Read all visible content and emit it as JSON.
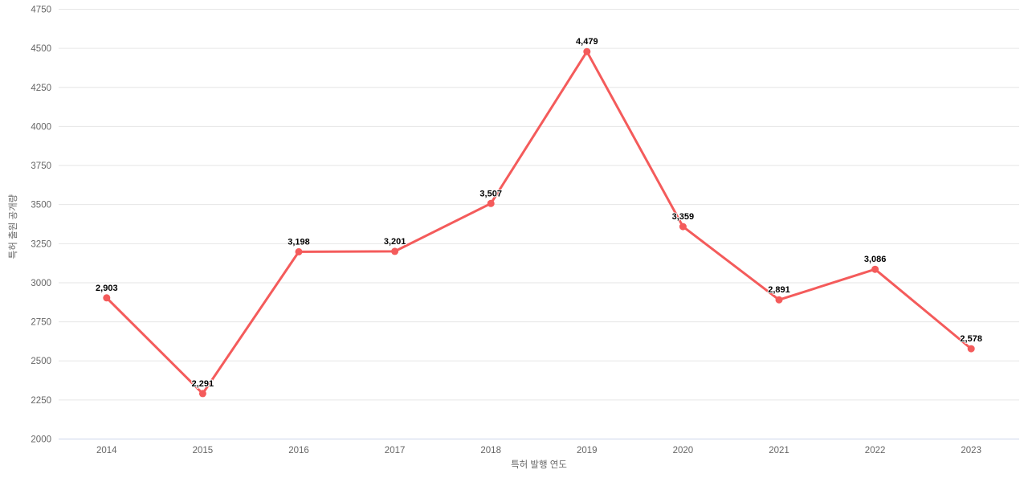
{
  "page": {
    "background": "#ffffff"
  },
  "chart_data": {
    "type": "line",
    "title": "",
    "categories": [
      "2014",
      "2015",
      "2016",
      "2017",
      "2018",
      "2019",
      "2020",
      "2021",
      "2022",
      "2023"
    ],
    "values": [
      2903,
      2291,
      3198,
      3201,
      3507,
      4479,
      3359,
      2891,
      3086,
      2578
    ],
    "point_labels": [
      "2,903",
      "2,291",
      "3,198",
      "3,201",
      "3,507",
      "4,479",
      "3,359",
      "2,891",
      "3,086",
      "2,578"
    ],
    "xlabel": "특허 발행 연도",
    "ylabel": "특허 출원 공개량",
    "ylim": [
      2000,
      4750
    ],
    "yticks": [
      2000,
      2250,
      2500,
      2750,
      3000,
      3250,
      3500,
      3750,
      4000,
      4250,
      4500,
      4750
    ],
    "grid": "horizontal",
    "legend": "none",
    "colors": {
      "series": "#f45b5b",
      "grid_line": "#e6e6e6",
      "axis_line": "#ccd6eb",
      "tick_label": "#666666",
      "axis_title": "#666666",
      "data_label": "#000000",
      "background": "#ffffff"
    }
  }
}
